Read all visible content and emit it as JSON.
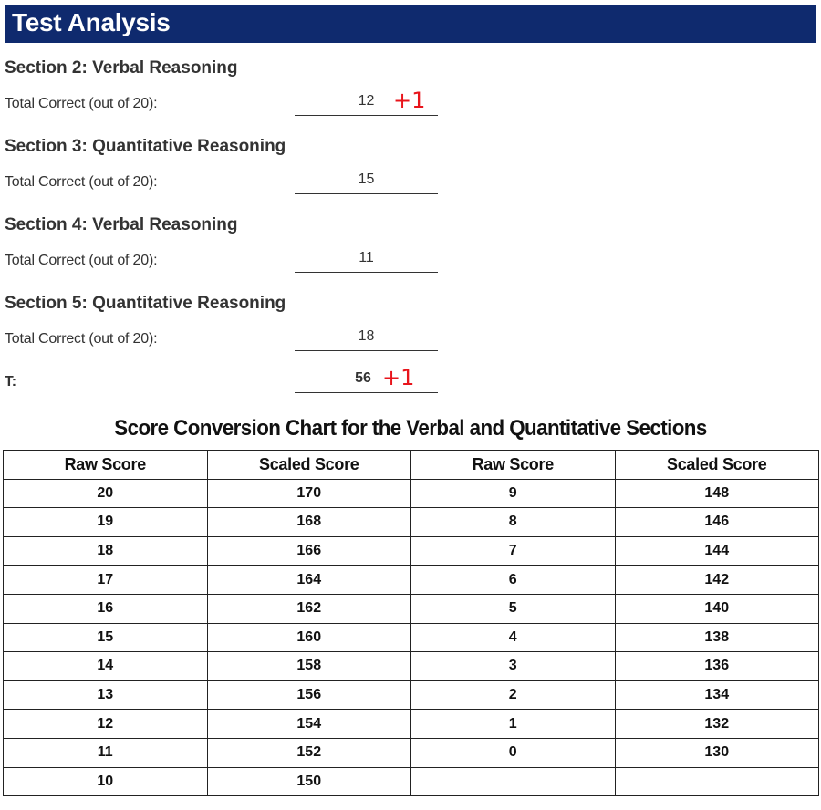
{
  "header": {
    "title": "Test Analysis"
  },
  "sections": [
    {
      "title": "Section 2: Verbal Reasoning",
      "label": "Total Correct (out of 20):",
      "value": "12",
      "annotation": "+1"
    },
    {
      "title": "Section 3: Quantitative Reasoning",
      "label": "Total Correct (out of 20):",
      "value": "15",
      "annotation": ""
    },
    {
      "title": "Section 4: Verbal Reasoning",
      "label": "Total Correct (out of 20):",
      "value": "11",
      "annotation": ""
    },
    {
      "title": "Section 5: Quantitative Reasoning",
      "label": "Total Correct (out of 20):",
      "value": "18",
      "annotation": ""
    }
  ],
  "total": {
    "label": "T:",
    "value": "56",
    "annotation": "+1"
  },
  "annotation_color": "#e8141b",
  "header_color": "#0f2a6e",
  "chart": {
    "title": "Score Conversion Chart for the Verbal and Quantitative Sections",
    "headers": [
      "Raw Score",
      "Scaled Score",
      "Raw Score",
      "Scaled Score"
    ],
    "rows": [
      [
        "20",
        "170",
        "9",
        "148"
      ],
      [
        "19",
        "168",
        "8",
        "146"
      ],
      [
        "18",
        "166",
        "7",
        "144"
      ],
      [
        "17",
        "164",
        "6",
        "142"
      ],
      [
        "16",
        "162",
        "5",
        "140"
      ],
      [
        "15",
        "160",
        "4",
        "138"
      ],
      [
        "14",
        "158",
        "3",
        "136"
      ],
      [
        "13",
        "156",
        "2",
        "134"
      ],
      [
        "12",
        "154",
        "1",
        "132"
      ],
      [
        "11",
        "152",
        "0",
        "130"
      ],
      [
        "10",
        "150",
        "",
        ""
      ]
    ]
  }
}
